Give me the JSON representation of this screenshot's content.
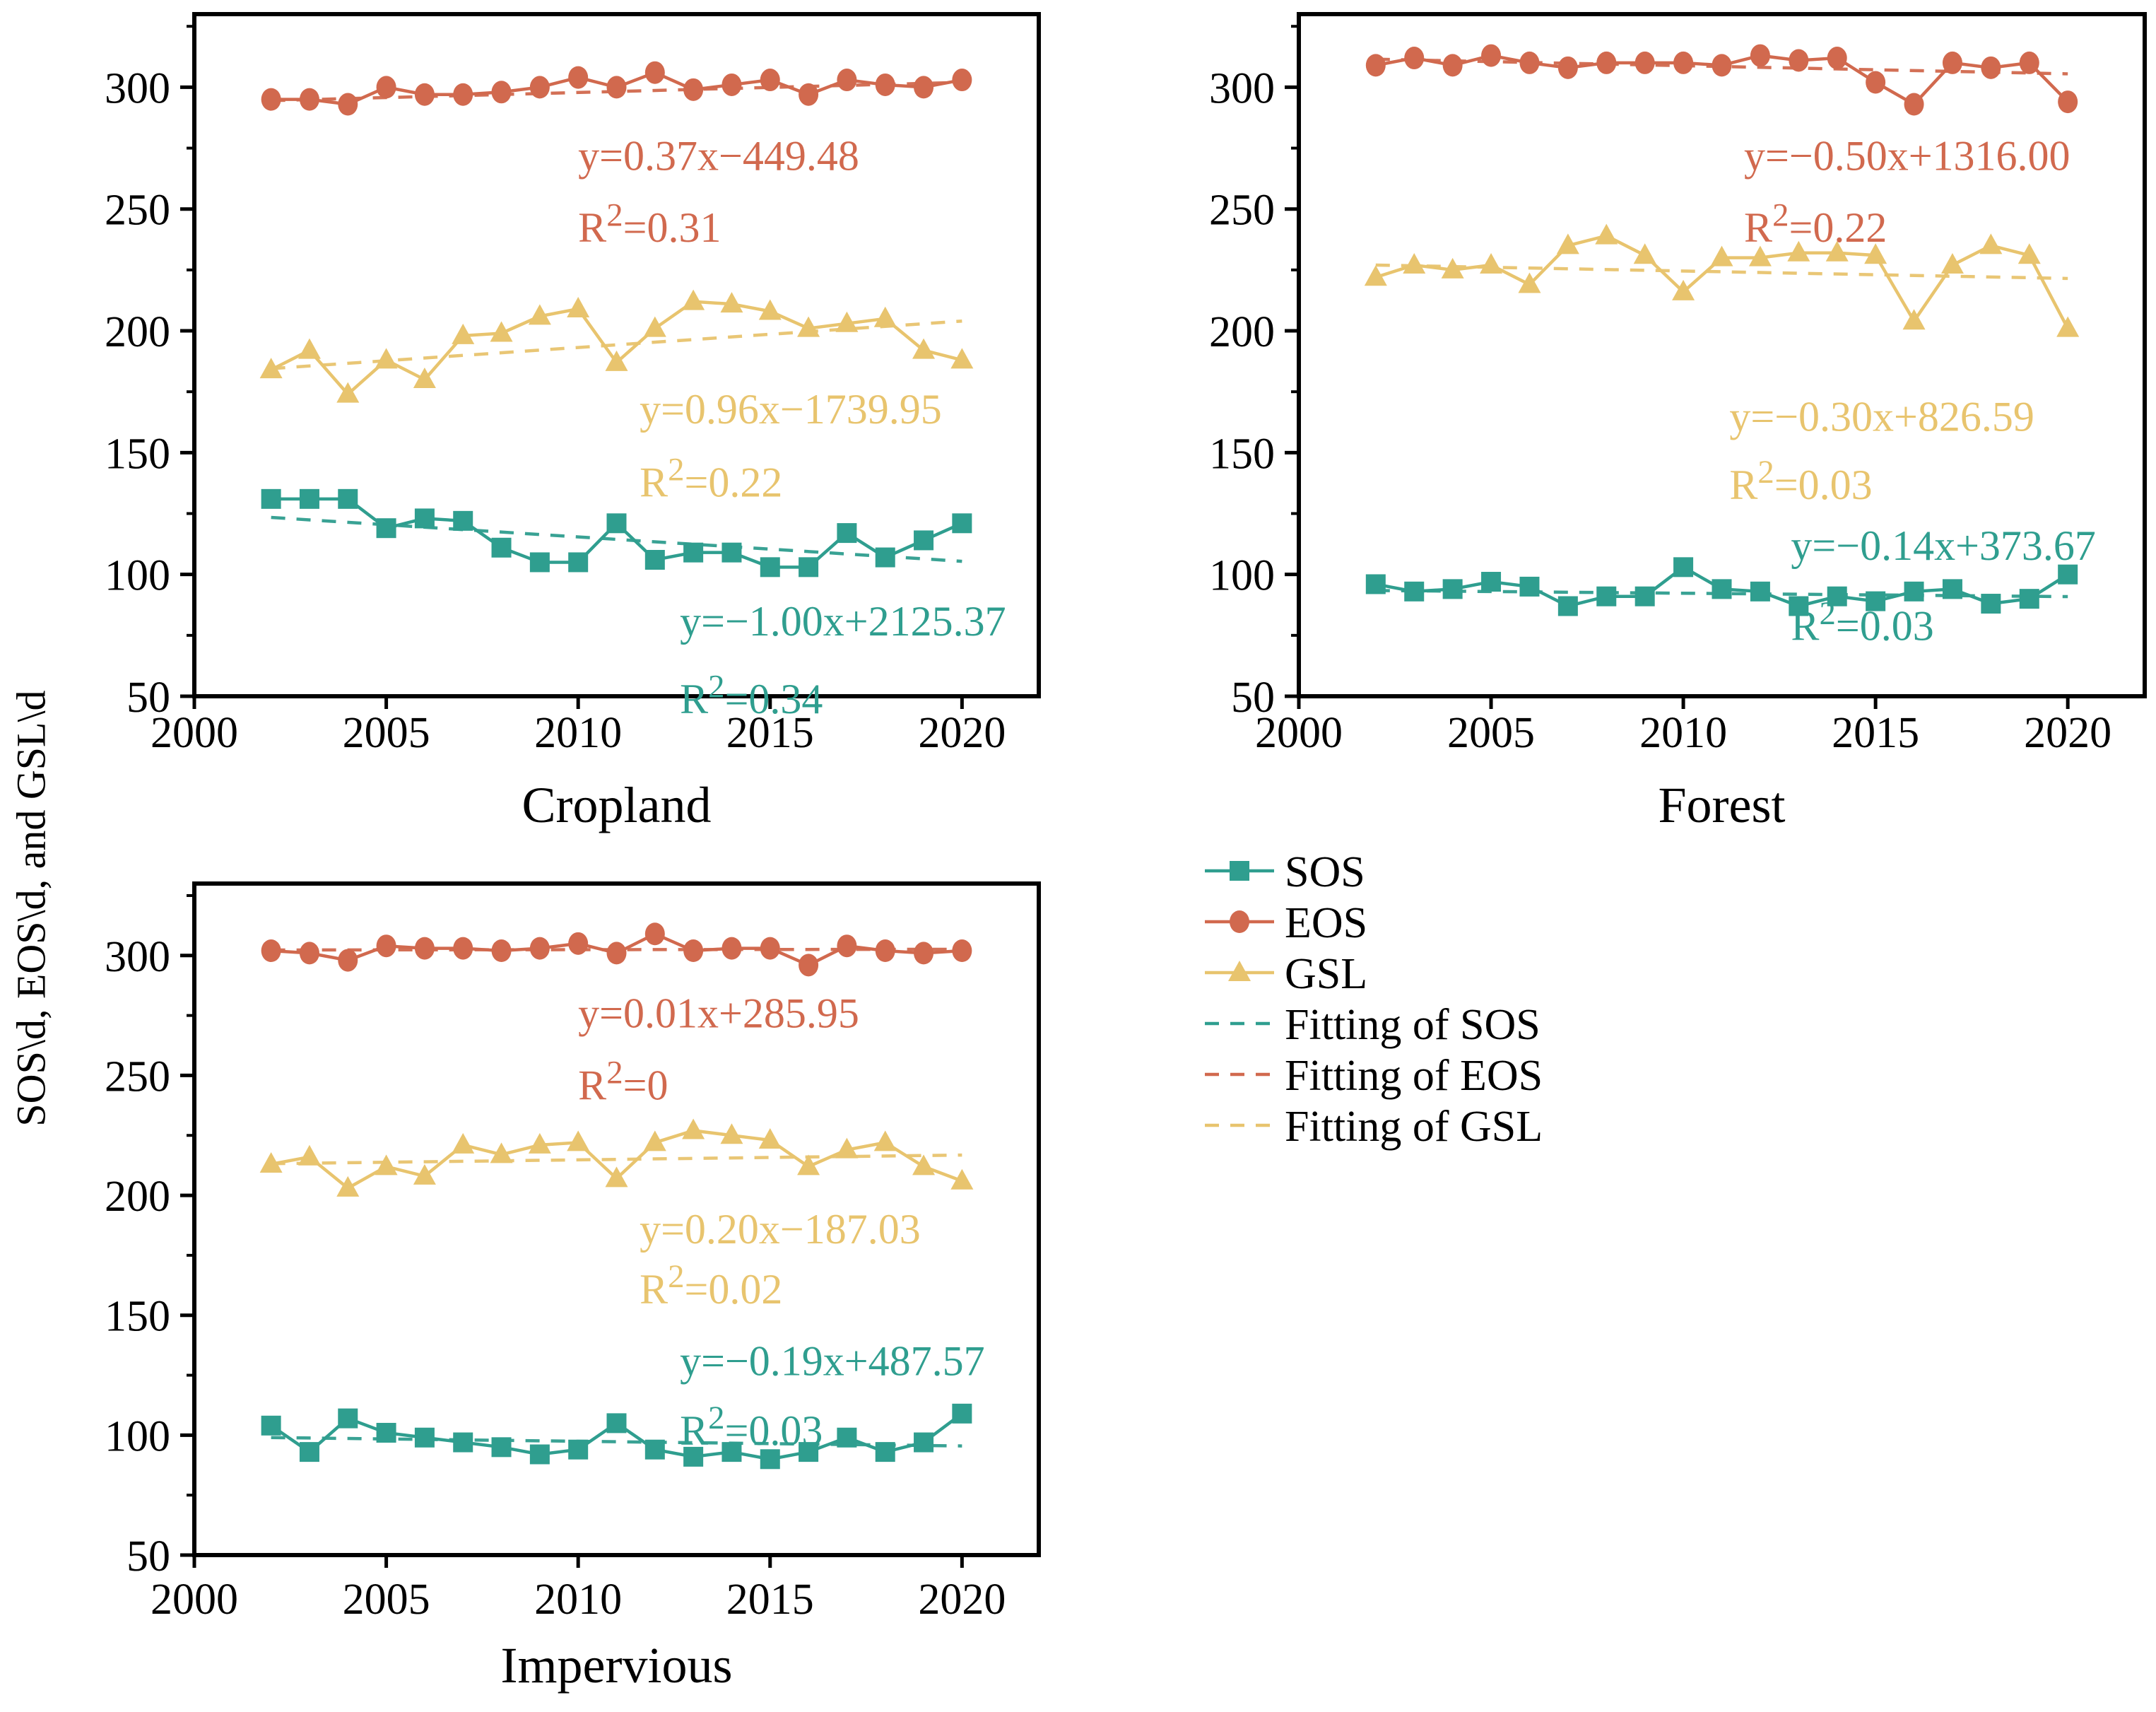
{
  "page": {
    "background": "#ffffff",
    "y_axis_label": "SOS\\d, EOS\\d, and GSL\\d"
  },
  "colors": {
    "sos": "#2F9E8F",
    "eos": "#D1694E",
    "gsl": "#E8C46E",
    "axis": "#000000"
  },
  "legend": {
    "items": [
      {
        "label": "SOS",
        "series": "sos",
        "marker": "square",
        "dashed": false
      },
      {
        "label": "EOS",
        "series": "eos",
        "marker": "circle",
        "dashed": false
      },
      {
        "label": "GSL",
        "series": "gsl",
        "marker": "triangle",
        "dashed": false
      },
      {
        "label": "Fitting of SOS",
        "series": "sos",
        "marker": null,
        "dashed": true
      },
      {
        "label": "Fitting of EOS",
        "series": "eos",
        "marker": null,
        "dashed": true
      },
      {
        "label": "Fitting of GSL",
        "series": "gsl",
        "marker": null,
        "dashed": true
      }
    ]
  },
  "chart_data": [
    {
      "type": "line",
      "title": "Cropland",
      "xlim": [
        2000,
        2022
      ],
      "ylim": [
        50,
        330
      ],
      "xticks": [
        2000,
        2005,
        2010,
        2015,
        2020
      ],
      "yticks": [
        50,
        100,
        150,
        200,
        250,
        300
      ],
      "x": [
        2002,
        2003,
        2004,
        2005,
        2006,
        2007,
        2008,
        2009,
        2010,
        2011,
        2012,
        2013,
        2014,
        2015,
        2016,
        2017,
        2018,
        2019,
        2020
      ],
      "series": [
        {
          "name": "EOS",
          "key": "eos",
          "marker": "circle",
          "values": [
            295,
            295,
            293,
            300,
            297,
            297,
            298,
            300,
            304,
            300,
            306,
            299,
            301,
            303,
            297,
            303,
            301,
            300,
            303
          ],
          "fit": {
            "x_start": 2002,
            "x_end": 2020,
            "y_start": 294.5,
            "y_end": 302
          },
          "equation": {
            "text": "y=0.37x−449.48",
            "r2": "R²=0.31",
            "eq_at": [
              2010.0,
              266
            ],
            "r2_at": [
              2010.0,
              236.5
            ]
          }
        },
        {
          "name": "GSL",
          "key": "gsl",
          "marker": "triangle",
          "values": [
            184,
            192,
            174,
            188,
            180,
            198,
            199,
            206,
            209,
            187,
            201,
            212,
            211,
            208,
            201,
            203,
            205,
            192,
            188
          ],
          "fit": {
            "x_start": 2002,
            "x_end": 2020,
            "y_start": 184.5,
            "y_end": 204
          },
          "equation": {
            "text": "y=0.96x−1739.95",
            "r2": "R²=0.22",
            "eq_at": [
              2011.6,
              162
            ],
            "r2_at": [
              2011.6,
              132
            ]
          }
        },
        {
          "name": "SOS",
          "key": "sos",
          "marker": "square",
          "values": [
            131,
            131,
            131,
            119,
            123,
            122,
            111,
            105,
            105,
            121,
            106,
            109,
            109,
            103,
            103,
            117,
            107,
            114,
            121
          ],
          "fit": {
            "x_start": 2002,
            "x_end": 2020,
            "y_start": 123.4,
            "y_end": 105.4
          },
          "equation": {
            "text": "y=−1.00x+2125.37",
            "r2": "R²=0.34",
            "eq_at": [
              2012.65,
              75
            ],
            "r2_at": [
              2012.65,
              43
            ]
          }
        }
      ]
    },
    {
      "type": "line",
      "title": "Forest",
      "xlim": [
        2000,
        2022
      ],
      "ylim": [
        50,
        330
      ],
      "xticks": [
        2000,
        2005,
        2010,
        2015,
        2020
      ],
      "yticks": [
        50,
        100,
        150,
        200,
        250,
        300
      ],
      "x": [
        2002,
        2003,
        2004,
        2005,
        2006,
        2007,
        2008,
        2009,
        2010,
        2011,
        2012,
        2013,
        2014,
        2015,
        2016,
        2017,
        2018,
        2019,
        2020
      ],
      "series": [
        {
          "name": "EOS",
          "key": "eos",
          "marker": "circle",
          "values": [
            309,
            312,
            309,
            313,
            310,
            308,
            310,
            310,
            310,
            309,
            313,
            311,
            312,
            302,
            293,
            310,
            308,
            310,
            294
          ],
          "fit": {
            "x_start": 2002,
            "x_end": 2020,
            "y_start": 311.5,
            "y_end": 305.5
          },
          "equation": {
            "text": "y=−0.50x+1316.00",
            "r2": "R²=0.22",
            "eq_at": [
              2011.58,
              266
            ],
            "r2_at": [
              2011.58,
              236.5
            ]
          }
        },
        {
          "name": "GSL",
          "key": "gsl",
          "marker": "triangle",
          "values": [
            222,
            227,
            225,
            227,
            219,
            235,
            239,
            231,
            216,
            230,
            230,
            232,
            232,
            231,
            204,
            227,
            235,
            231,
            201
          ],
          "fit": {
            "x_start": 2002,
            "x_end": 2020,
            "y_start": 227,
            "y_end": 221.5
          },
          "equation": {
            "text": "y=−0.30x+826.59",
            "r2": "R²=0.03",
            "eq_at": [
              2011.2,
              159
            ],
            "r2_at": [
              2011.2,
              131
            ]
          }
        },
        {
          "name": "SOS",
          "key": "sos",
          "marker": "square",
          "values": [
            96,
            93,
            94,
            97,
            95,
            87,
            91,
            91,
            103,
            94,
            93,
            87,
            91,
            89,
            93,
            94,
            88,
            90,
            100
          ],
          "fit": {
            "x_start": 2002,
            "x_end": 2020,
            "y_start": 93.4,
            "y_end": 90.9
          },
          "equation": {
            "text": "y=−0.14x+373.67",
            "r2": "R²=0.03",
            "eq_at": [
              2012.8,
              106
            ],
            "r2_at": [
              2012.8,
              73
            ]
          }
        }
      ]
    },
    {
      "type": "line",
      "title": "Impervious",
      "xlim": [
        2000,
        2022
      ],
      "ylim": [
        50,
        330
      ],
      "xticks": [
        2000,
        2005,
        2010,
        2015,
        2020
      ],
      "yticks": [
        50,
        100,
        150,
        200,
        250,
        300
      ],
      "x": [
        2002,
        2003,
        2004,
        2005,
        2006,
        2007,
        2008,
        2009,
        2010,
        2011,
        2012,
        2013,
        2014,
        2015,
        2016,
        2017,
        2018,
        2019,
        2020
      ],
      "series": [
        {
          "name": "EOS",
          "key": "eos",
          "marker": "circle",
          "values": [
            302,
            301,
            298,
            304,
            303,
            303,
            302,
            303,
            305,
            301,
            309,
            302,
            303,
            303,
            296,
            304,
            302,
            301,
            302
          ],
          "fit": {
            "x_start": 2002,
            "x_end": 2020,
            "y_start": 302.3,
            "y_end": 302.6
          },
          "equation": {
            "text": "y=0.01x+285.95",
            "r2": "R²=0",
            "eq_at": [
              2010.0,
              270
            ],
            "r2_at": [
              2010.0,
              240
            ]
          }
        },
        {
          "name": "GSL",
          "key": "gsl",
          "marker": "triangle",
          "values": [
            213,
            216,
            203,
            212,
            208,
            221,
            217,
            221,
            222,
            207,
            222,
            227,
            225,
            223,
            212,
            219,
            222,
            212,
            206
          ],
          "fit": {
            "x_start": 2002,
            "x_end": 2020,
            "y_start": 213.2,
            "y_end": 216.8
          },
          "equation": {
            "text": "y=0.20x−187.03",
            "r2": "R²=0.02",
            "eq_at": [
              2011.6,
              180
            ],
            "r2_at": [
              2011.6,
              155
            ]
          }
        },
        {
          "name": "SOS",
          "key": "sos",
          "marker": "square",
          "values": [
            104,
            93,
            107,
            101,
            99,
            97,
            95,
            92,
            94,
            105,
            94,
            91,
            93,
            90,
            93,
            99,
            93,
            97,
            109
          ],
          "fit": {
            "x_start": 2002,
            "x_end": 2020,
            "y_start": 99,
            "y_end": 95.5
          },
          "equation": {
            "text": "y=−0.19x+487.57",
            "r2": "R²=0.03",
            "eq_at": [
              2012.65,
              125
            ],
            "r2_at": [
              2012.65,
              96
            ]
          }
        }
      ]
    }
  ]
}
